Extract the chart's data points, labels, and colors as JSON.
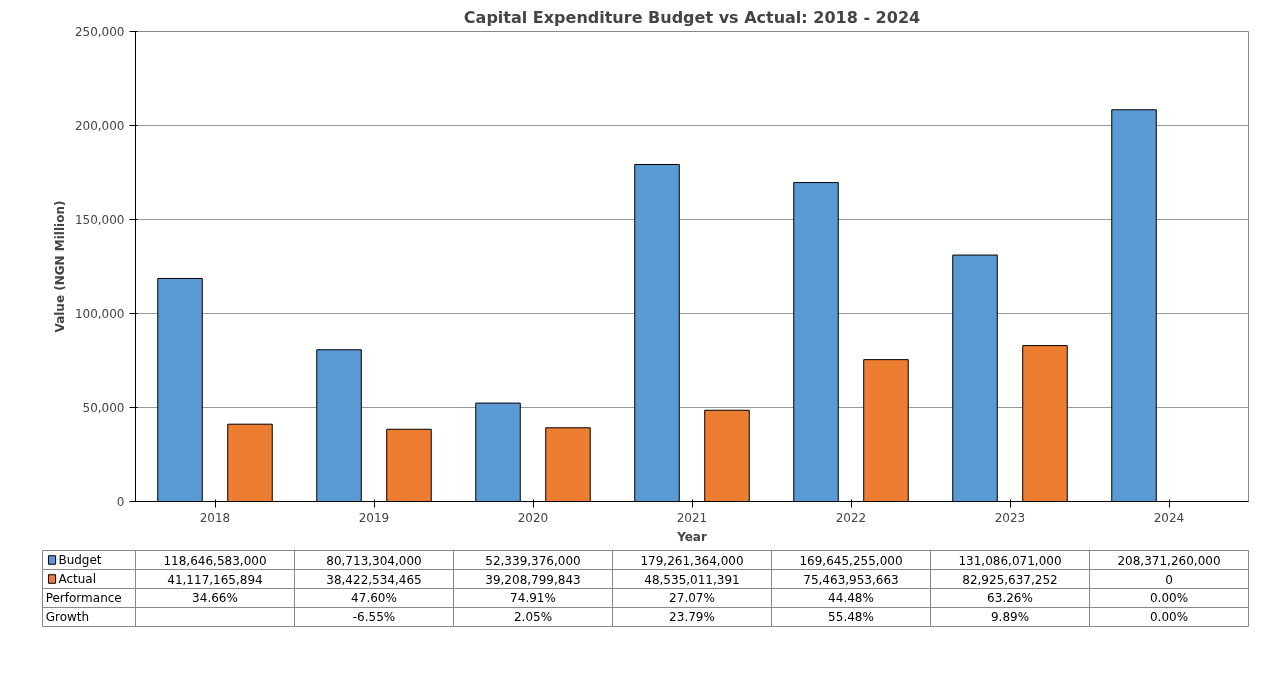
{
  "chart_data": {
    "type": "bar",
    "title": "Capital Expenditure Budget vs Actual: 2018 - 2024",
    "xlabel": "Year",
    "ylabel": "Value (NGN Million)",
    "categories": [
      "2018",
      "2019",
      "2020",
      "2021",
      "2022",
      "2023",
      "2024"
    ],
    "series": [
      {
        "name": "Budget",
        "color": "#5b9bd5",
        "values": [
          118646.583,
          80713.304,
          52339.376,
          179261.364,
          169645.255,
          131086.071,
          208371.26
        ]
      },
      {
        "name": "Actual",
        "color": "#ed7d31",
        "values": [
          41117.165894,
          38422.534465,
          39208.799843,
          48535.011391,
          75463.953663,
          82925.637252,
          0
        ]
      }
    ],
    "annotations": [
      "118,646,583,000",
      "80,713,304,000",
      "52,339,376,000",
      "179,261,364,000",
      "169,645,255,000",
      "131,086,071,000",
      "208,371,260,000",
      "41,117,165,894",
      "38,422,534,465",
      "39,208,799,843",
      "48,535,011,391",
      "75,463,953,663",
      "82,925,637,252",
      "0",
      "Performance",
      "34.66%",
      "47.60%",
      "74.91%",
      "27.07%",
      "44.48%",
      "63.26%",
      "0.00%",
      "Growth",
      "-6.55%",
      "2.05%",
      "23.79%",
      "55.48%",
      "9.89%",
      "0.00%"
    ],
    "ylim": [
      0,
      250000
    ],
    "yticks": [
      {
        "value": 0,
        "label": "0"
      },
      {
        "value": 50000,
        "label": "50,000"
      },
      {
        "value": 100000,
        "label": "100,000"
      },
      {
        "value": 150000,
        "label": "150,000"
      },
      {
        "value": 200000,
        "label": "200,000"
      },
      {
        "value": 250000,
        "label": "250,000"
      }
    ],
    "grid": "y",
    "legend": "bottom"
  }
}
